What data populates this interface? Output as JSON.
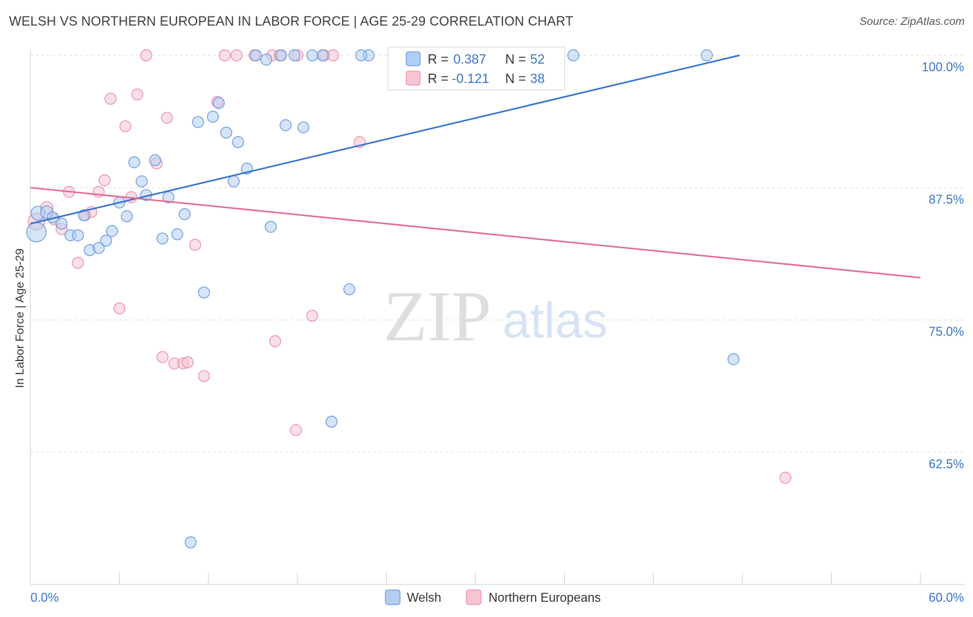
{
  "header": {
    "title": "WELSH VS NORTHERN EUROPEAN IN LABOR FORCE | AGE 25-29 CORRELATION CHART",
    "source": "Source: ZipAtlas.com"
  },
  "watermark": {
    "zip": "ZIP",
    "atlas": "atlas"
  },
  "legend": {
    "rows": [
      {
        "r_label": "R =",
        "r_value": "0.387",
        "n_label": "N =",
        "n_value": "52"
      },
      {
        "r_label": "R =",
        "r_value": "-0.121",
        "n_label": "N =",
        "n_value": "38"
      }
    ]
  },
  "bottom_legend": {
    "welsh": "Welsh",
    "northern": "Northern Europeans"
  },
  "chart_data": {
    "type": "scatter",
    "ylabel": "In Labor Force | Age 25-29",
    "xlim": [
      0,
      60
    ],
    "ylim": [
      52.5,
      101
    ],
    "x_tick_labels": [
      "0.0%",
      "60.0%"
    ],
    "y_ticks": [
      {
        "value": 100,
        "label": "100.0%"
      },
      {
        "value": 87.5,
        "label": "87.5%"
      },
      {
        "value": 75,
        "label": "75.0%"
      },
      {
        "value": 62.5,
        "label": "62.5%"
      }
    ],
    "grid": true,
    "colors": {
      "welsh_fill": "#b3cef3",
      "welsh_stroke": "#6a9be0",
      "welsh_line": "#2f6fcf",
      "ne_fill": "#f8c4d2",
      "ne_stroke": "#ec8fab",
      "ne_line": "#e2688f"
    },
    "series": [
      {
        "name": "Welsh",
        "trend": {
          "x": [
            0,
            47.8
          ],
          "y": [
            84.1,
            100.0
          ]
        },
        "points": [
          [
            0.4,
            83.3,
            14
          ],
          [
            0.5,
            85.1,
            10
          ],
          [
            1.1,
            85.2,
            9
          ],
          [
            1.5,
            84.7,
            8
          ],
          [
            2.1,
            84.1,
            8
          ],
          [
            2.7,
            83.0,
            8
          ],
          [
            3.2,
            83.0,
            8
          ],
          [
            3.6,
            84.9,
            8
          ],
          [
            4.0,
            81.6,
            8
          ],
          [
            4.6,
            81.8,
            8
          ],
          [
            5.1,
            82.5,
            8
          ],
          [
            5.5,
            83.4,
            8
          ],
          [
            6.0,
            86.1,
            8
          ],
          [
            6.5,
            84.8,
            8
          ],
          [
            7.0,
            89.9,
            8
          ],
          [
            7.5,
            88.1,
            8
          ],
          [
            7.8,
            86.8,
            8
          ],
          [
            8.4,
            90.1,
            8
          ],
          [
            8.9,
            82.7,
            8
          ],
          [
            9.3,
            86.6,
            8
          ],
          [
            9.9,
            83.1,
            8
          ],
          [
            10.4,
            85.0,
            8
          ],
          [
            10.8,
            54.0,
            8
          ],
          [
            11.3,
            93.7,
            8
          ],
          [
            11.7,
            77.6,
            8
          ],
          [
            12.3,
            94.2,
            8
          ],
          [
            12.7,
            95.5,
            8
          ],
          [
            13.2,
            92.7,
            8
          ],
          [
            13.7,
            88.1,
            8
          ],
          [
            14.0,
            91.8,
            8
          ],
          [
            14.6,
            89.3,
            8
          ],
          [
            15.2,
            100.0,
            8
          ],
          [
            15.9,
            99.6,
            8
          ],
          [
            16.2,
            83.8,
            8
          ],
          [
            16.9,
            100.0,
            8
          ],
          [
            17.2,
            93.4,
            8
          ],
          [
            17.8,
            100.0,
            8
          ],
          [
            18.4,
            93.2,
            8
          ],
          [
            19.0,
            100.0,
            8
          ],
          [
            20.3,
            65.4,
            8
          ],
          [
            21.5,
            77.9,
            8
          ],
          [
            22.8,
            100.0,
            8
          ],
          [
            25.9,
            100.0,
            8
          ],
          [
            27.1,
            100.0,
            8
          ],
          [
            29.8,
            100.0,
            8
          ],
          [
            32.3,
            100.0,
            8
          ],
          [
            35.0,
            100.0,
            8
          ],
          [
            36.6,
            100.0,
            8
          ],
          [
            45.6,
            100.0,
            8
          ],
          [
            47.4,
            71.3,
            8
          ],
          [
            19.7,
            100.0,
            8
          ],
          [
            22.3,
            100.0,
            8
          ]
        ]
      },
      {
        "name": "Northern Europeans",
        "trend": {
          "x": [
            0,
            60
          ],
          "y": [
            87.5,
            79.0
          ]
        },
        "points": [
          [
            0.4,
            84.3,
            12
          ],
          [
            1.1,
            85.6,
            9
          ],
          [
            1.6,
            84.5,
            8
          ],
          [
            2.1,
            83.6,
            8
          ],
          [
            2.6,
            87.1,
            8
          ],
          [
            3.2,
            80.4,
            8
          ],
          [
            3.7,
            84.9,
            8
          ],
          [
            4.1,
            85.2,
            8
          ],
          [
            4.6,
            87.1,
            8
          ],
          [
            5.0,
            88.2,
            8
          ],
          [
            5.4,
            95.9,
            8
          ],
          [
            6.0,
            76.1,
            8
          ],
          [
            6.4,
            93.3,
            8
          ],
          [
            6.8,
            86.6,
            8
          ],
          [
            7.2,
            96.3,
            8
          ],
          [
            7.8,
            100.0,
            8
          ],
          [
            8.5,
            89.8,
            8
          ],
          [
            8.9,
            71.5,
            8
          ],
          [
            9.2,
            94.1,
            8
          ],
          [
            9.7,
            70.9,
            8
          ],
          [
            10.3,
            70.9,
            8
          ],
          [
            10.6,
            71.0,
            8
          ],
          [
            11.1,
            82.1,
            8
          ],
          [
            11.7,
            69.7,
            8
          ],
          [
            12.6,
            95.6,
            8
          ],
          [
            13.1,
            100.0,
            8
          ],
          [
            13.9,
            100.0,
            8
          ],
          [
            15.1,
            100.0,
            8
          ],
          [
            16.3,
            100.0,
            8
          ],
          [
            16.8,
            100.0,
            8
          ],
          [
            18.0,
            100.0,
            8
          ],
          [
            19.8,
            100.0,
            8
          ],
          [
            20.4,
            100.0,
            8
          ],
          [
            16.5,
            73.0,
            8
          ],
          [
            17.9,
            64.6,
            8
          ],
          [
            19.0,
            75.4,
            8
          ],
          [
            22.2,
            91.8,
            8
          ],
          [
            50.9,
            60.1,
            8
          ]
        ]
      }
    ]
  }
}
